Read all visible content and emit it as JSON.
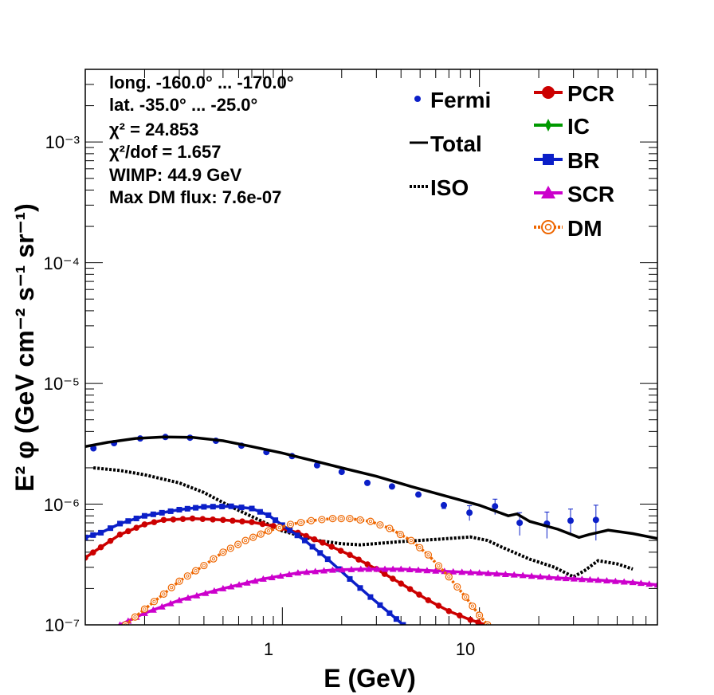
{
  "chart_data": {
    "type": "line",
    "title": "",
    "xlabel": "E (GeV)",
    "ylabel": "E² φ (GeV cm⁻² s⁻¹ sr⁻¹)",
    "xscale": "log",
    "yscale": "log",
    "xlim": [
      0.1,
      80
    ],
    "ylim": [
      1e-07,
      0.004
    ],
    "x_tick_labels": [
      "1",
      "10"
    ],
    "y_tick_labels": [
      "10⁻⁷",
      "10⁻⁶",
      "10⁻⁵",
      "10⁻⁴",
      "10⁻³"
    ],
    "legend_position": "top-right",
    "annotations": {
      "longitude": "long. -160.0° ... -170.0°",
      "latitude": "lat. -35.0° ... -25.0°",
      "chi2": "χ² = 24.853",
      "chi2_dof": "χ²/dof = 1.657",
      "wimp": "WIMP: 44.9 GeV",
      "max_dm_flux": "Max DM flux: 7.6e-07"
    },
    "series": [
      {
        "name": "Fermi",
        "color": "#0b1fc8",
        "style": "points-with-errors",
        "points": [
          [
            0.11,
            2.9e-06
          ],
          [
            0.14,
            3.2e-06
          ],
          [
            0.19,
            3.5e-06
          ],
          [
            0.255,
            3.6e-06
          ],
          [
            0.34,
            3.55e-06
          ],
          [
            0.46,
            3.35e-06
          ],
          [
            0.62,
            3.05e-06
          ],
          [
            0.83,
            2.7e-06
          ],
          [
            1.12,
            2.5e-06
          ],
          [
            1.5,
            2.1e-06
          ],
          [
            2.0,
            1.85e-06
          ],
          [
            2.7,
            1.5e-06
          ],
          [
            3.6,
            1.4e-06
          ],
          [
            4.9,
            1.2e-06
          ],
          [
            6.6,
            9.8e-07
          ],
          [
            8.9,
            8.5e-07
          ],
          [
            12.0,
            9.6e-07
          ],
          [
            16.0,
            7e-07
          ],
          [
            22.0,
            6.9e-07
          ],
          [
            29.0,
            7.3e-07
          ],
          [
            39.0,
            7.4e-07
          ]
        ],
        "errors_high": [
          0,
          0,
          0,
          0,
          0,
          0,
          0,
          0,
          0,
          0,
          0,
          0,
          0,
          0,
          9.2e-07,
          9.7e-07,
          1.1e-06,
          8.5e-07,
          8.6e-07,
          9.1e-07,
          9.8e-07
        ]
      },
      {
        "name": "Total",
        "color": "#000000",
        "style": "solid",
        "points": [
          [
            0.1,
            3e-06
          ],
          [
            0.13,
            3.25e-06
          ],
          [
            0.18,
            3.5e-06
          ],
          [
            0.25,
            3.6e-06
          ],
          [
            0.35,
            3.58e-06
          ],
          [
            0.5,
            3.35e-06
          ],
          [
            0.7,
            3e-06
          ],
          [
            1.0,
            2.65e-06
          ],
          [
            1.5,
            2.25e-06
          ],
          [
            2.0,
            2e-06
          ],
          [
            3.0,
            1.7e-06
          ],
          [
            4.5,
            1.4e-06
          ],
          [
            7.0,
            1.15e-06
          ],
          [
            10.0,
            9.8e-07
          ],
          [
            14.0,
            8e-07
          ],
          [
            15.5,
            8.3e-07
          ],
          [
            18.0,
            7.2e-07
          ],
          [
            25.0,
            6.2e-07
          ],
          [
            32.0,
            5.3e-07
          ],
          [
            36.0,
            5.6e-07
          ],
          [
            45.0,
            6.1e-07
          ],
          [
            60.0,
            5.7e-07
          ],
          [
            80.0,
            5.2e-07
          ]
        ]
      },
      {
        "name": "ISO",
        "color": "#000000",
        "style": "dotted",
        "points": [
          [
            0.11,
            2e-06
          ],
          [
            0.15,
            1.9e-06
          ],
          [
            0.2,
            1.75e-06
          ],
          [
            0.3,
            1.5e-06
          ],
          [
            0.4,
            1.25e-06
          ],
          [
            0.55,
            9.5e-07
          ],
          [
            0.75,
            7.5e-07
          ],
          [
            1.0,
            6e-07
          ],
          [
            1.5,
            5e-07
          ],
          [
            2.0,
            4.7e-07
          ],
          [
            2.5,
            4.6e-07
          ],
          [
            4.0,
            4.9e-07
          ],
          [
            6.0,
            5.1e-07
          ],
          [
            9.0,
            5.35e-07
          ],
          [
            11.0,
            5e-07
          ],
          [
            13.0,
            4.4e-07
          ],
          [
            18.0,
            3.5e-07
          ],
          [
            24.0,
            3e-07
          ],
          [
            30.0,
            2.5e-07
          ],
          [
            34.0,
            2.8e-07
          ],
          [
            40.0,
            3.4e-07
          ],
          [
            50.0,
            3.2e-07
          ],
          [
            60.0,
            2.9e-07
          ]
        ]
      },
      {
        "name": "PCR",
        "color": "#cc0000",
        "style": "dashed-circles",
        "points": [
          [
            0.1,
            3.6e-07
          ],
          [
            0.12,
            4.4e-07
          ],
          [
            0.15,
            5.6e-07
          ],
          [
            0.2,
            6.8e-07
          ],
          [
            0.25,
            7.4e-07
          ],
          [
            0.35,
            7.6e-07
          ],
          [
            0.5,
            7.4e-07
          ],
          [
            0.7,
            7.1e-07
          ],
          [
            0.9,
            6.6e-07
          ],
          [
            1.2,
            5.8e-07
          ],
          [
            1.6,
            4.8e-07
          ],
          [
            2.2,
            3.8e-07
          ],
          [
            3.0,
            2.9e-07
          ],
          [
            4.0,
            2.2e-07
          ],
          [
            5.5,
            1.6e-07
          ],
          [
            7.0,
            1.3e-07
          ],
          [
            9.0,
            1.1e-07
          ],
          [
            10.8,
            1e-07
          ]
        ]
      },
      {
        "name": "IC",
        "color": "#009900",
        "style": "dashed-diamonds",
        "points": []
      },
      {
        "name": "BR",
        "color": "#0b1fc8",
        "style": "dashed-squares",
        "points": [
          [
            0.1,
            5.3e-07
          ],
          [
            0.12,
            5.8e-07
          ],
          [
            0.15,
            6.9e-07
          ],
          [
            0.2,
            8e-07
          ],
          [
            0.3,
            9e-07
          ],
          [
            0.4,
            9.5e-07
          ],
          [
            0.55,
            9.6e-07
          ],
          [
            0.7,
            9.2e-07
          ],
          [
            0.85,
            8.1e-07
          ],
          [
            1.0,
            6.7e-07
          ],
          [
            1.3,
            5e-07
          ],
          [
            1.7,
            3.5e-07
          ],
          [
            2.2,
            2.4e-07
          ],
          [
            2.8,
            1.7e-07
          ],
          [
            3.5,
            1.25e-07
          ],
          [
            4.1,
            1e-07
          ]
        ]
      },
      {
        "name": "SCR",
        "color": "#cc00cc",
        "style": "dashed-triangles",
        "points": [
          [
            0.15,
            1e-07
          ],
          [
            0.2,
            1.25e-07
          ],
          [
            0.3,
            1.6e-07
          ],
          [
            0.5,
            2e-07
          ],
          [
            0.8,
            2.4e-07
          ],
          [
            1.2,
            2.7e-07
          ],
          [
            1.8,
            2.85e-07
          ],
          [
            2.5,
            2.9e-07
          ],
          [
            4.0,
            2.9e-07
          ],
          [
            6.0,
            2.8e-07
          ],
          [
            10.0,
            2.7e-07
          ],
          [
            15.0,
            2.6e-07
          ],
          [
            25.0,
            2.45e-07
          ],
          [
            40.0,
            2.35e-07
          ],
          [
            60.0,
            2.25e-07
          ],
          [
            80.0,
            2.15e-07
          ]
        ]
      },
      {
        "name": "DM",
        "color": "#ee6600",
        "style": "dotted-open-circles",
        "points": [
          [
            0.16,
            1e-07
          ],
          [
            0.2,
            1.35e-07
          ],
          [
            0.25,
            1.8e-07
          ],
          [
            0.3,
            2.3e-07
          ],
          [
            0.4,
            3.1e-07
          ],
          [
            0.5,
            4e-07
          ],
          [
            0.65,
            5e-07
          ],
          [
            0.85,
            6e-07
          ],
          [
            1.1,
            6.8e-07
          ],
          [
            1.4,
            7.3e-07
          ],
          [
            1.8,
            7.6e-07
          ],
          [
            2.2,
            7.6e-07
          ],
          [
            2.8,
            7.2e-07
          ],
          [
            3.5,
            6.3e-07
          ],
          [
            4.5,
            5e-07
          ],
          [
            5.5,
            3.8e-07
          ],
          [
            7.0,
            2.5e-07
          ],
          [
            8.5,
            1.7e-07
          ],
          [
            10.0,
            1.2e-07
          ],
          [
            11.0,
            1e-07
          ]
        ]
      }
    ]
  }
}
